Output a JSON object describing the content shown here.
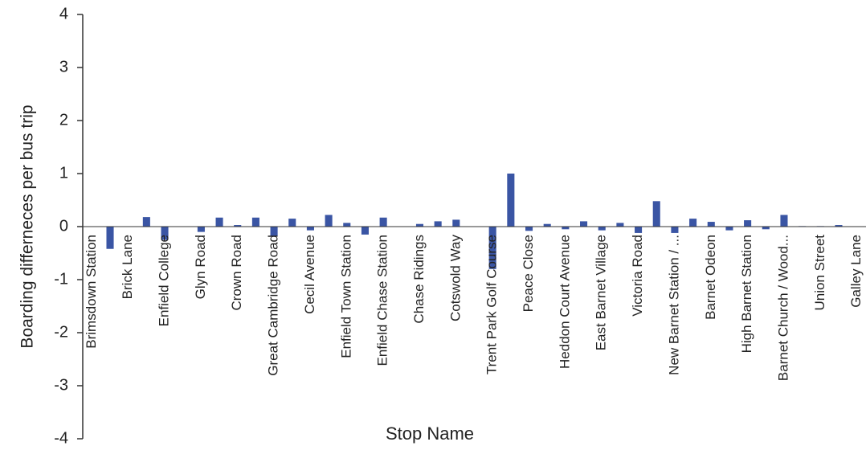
{
  "chart_data": {
    "type": "bar",
    "x_label": "Stop Name",
    "y_label": "Boarding differneces per bus trip",
    "color": "#3a55a4",
    "categories": [
      "Brimsdown Station",
      null,
      "Brick Lane",
      null,
      "Enfield College",
      null,
      "Glyn Road",
      null,
      "Crown Road",
      null,
      "Great Cambridge Road",
      null,
      "Cecil Avenue",
      null,
      "Enfield Town Station",
      null,
      "Enfield Chase Station",
      null,
      "Chase Ridings",
      null,
      "Cotswold Way",
      null,
      "Trent Park Golf Course",
      null,
      "Peace Close",
      null,
      "Heddon Court Avenue",
      null,
      "East Barnet Village",
      null,
      "Victoria Road",
      null,
      "New Barnet Station / ...",
      null,
      "Barnet Odeon",
      null,
      "High Barnet Station",
      null,
      "Barnet Church / Wood...",
      null,
      "Union Street",
      null,
      "Galley Lane"
    ],
    "values": [
      0,
      -0.42,
      0,
      0.18,
      -0.25,
      0,
      -0.1,
      0.17,
      0.03,
      0.17,
      -0.18,
      0.15,
      -0.07,
      0.22,
      0.07,
      -0.15,
      0.17,
      0,
      0.05,
      0.1,
      0.13,
      0,
      -0.8,
      1.0,
      -0.08,
      0.05,
      -0.05,
      0.1,
      -0.07,
      0.07,
      -0.12,
      0.48,
      -0.12,
      0.15,
      0.09,
      -0.07,
      0.12,
      -0.05,
      0.22,
      0.01,
      0.01,
      0.03,
      0
    ],
    "ylim": [
      -4,
      4
    ],
    "yticks": [
      -4,
      -3,
      -2,
      -1,
      0,
      1,
      2,
      3,
      4
    ]
  }
}
